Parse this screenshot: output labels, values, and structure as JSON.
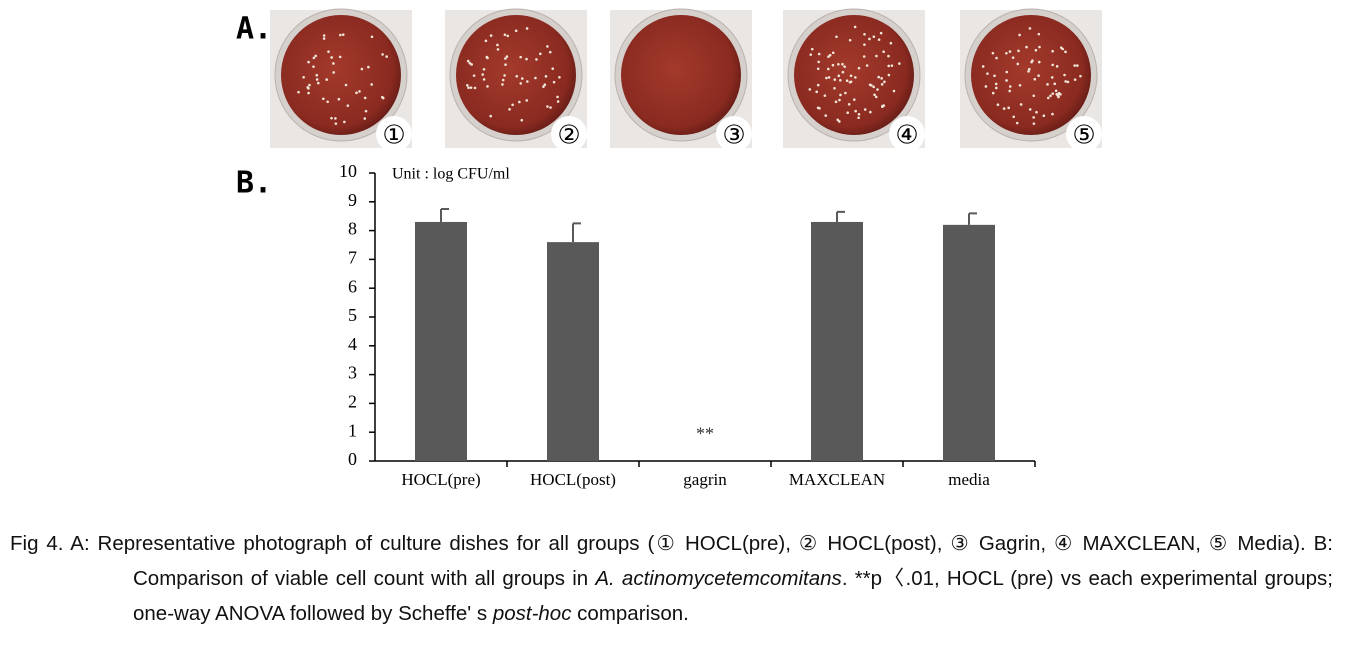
{
  "panels": {
    "a_label": "A.",
    "b_label": "B.",
    "dish_labels": [
      "①",
      "②",
      "③",
      "④",
      "⑤"
    ]
  },
  "chart_data": {
    "type": "bar",
    "annotation": "Unit : log CFU/ml",
    "categories": [
      "HOCL(pre)",
      "HOCL(post)",
      "gagrin",
      "MAXCLEAN",
      "media"
    ],
    "values": [
      8.3,
      7.6,
      0,
      8.3,
      8.2
    ],
    "errors": [
      0.45,
      0.65,
      null,
      0.35,
      0.4
    ],
    "color": "#595959",
    "ylim": [
      0,
      10
    ],
    "yticks": [
      0,
      1,
      2,
      3,
      4,
      5,
      6,
      7,
      8,
      9,
      10
    ],
    "marker": {
      "text": "**",
      "category": 2,
      "y": 1
    }
  },
  "caption": {
    "lead": "Fig 4. A: Representative photograph of culture dishes for all groups (① HOCL(pre), ② HOCL(post), ③ Gagrin, ④ MAXCLEAN, ⑤ Media). B: Comparison of viable cell count with all groups in ",
    "species": "A. actinomycetemcomitans",
    "middle": ". **p〈.01, HOCL (pre) vs each experimental groups; one-way ANOVA followed by Scheffe' s ",
    "posthoc": "post-hoc",
    "end": " comparison."
  }
}
